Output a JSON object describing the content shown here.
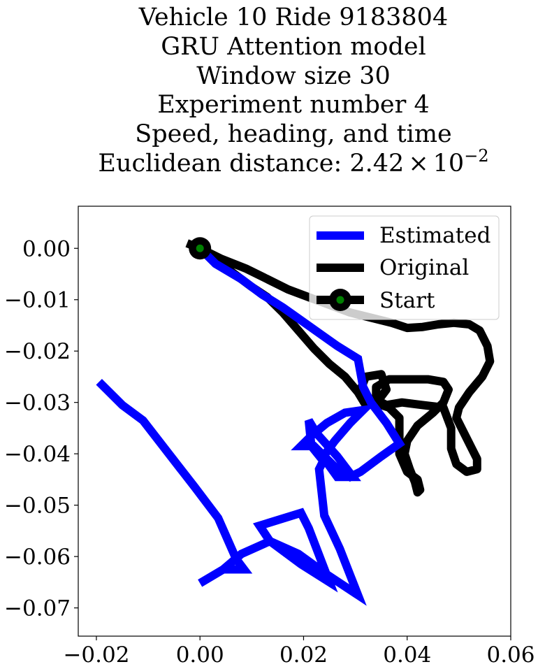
{
  "chart_data": {
    "type": "line",
    "title_lines": [
      "Vehicle 10 Ride 9183804",
      "GRU Attention model",
      "Window size 30",
      "Experiment number 4",
      "Speed, heading, and time"
    ],
    "title_distance_prefix": "Euclidean distance: ",
    "title_distance_mantissa": "2.42",
    "title_distance_times": "×",
    "title_distance_base": "10",
    "title_distance_exponent": "−2",
    "xlabel": "",
    "ylabel": "",
    "xlim": [
      -0.0235,
      0.06
    ],
    "ylim": [
      -0.0755,
      0.0082
    ],
    "x_ticks": [
      -0.02,
      0.0,
      0.02,
      0.04,
      0.06
    ],
    "x_tick_labels": [
      "−0.02",
      "0.00",
      "0.02",
      "0.04",
      "0.06"
    ],
    "y_ticks": [
      0.0,
      -0.01,
      -0.02,
      -0.03,
      -0.04,
      -0.05,
      -0.06,
      -0.07
    ],
    "y_tick_labels": [
      "0.00",
      "−0.01",
      "−0.02",
      "−0.03",
      "−0.04",
      "−0.05",
      "−0.06",
      "−0.07"
    ],
    "grid": false,
    "legend_position": "upper right",
    "series": [
      {
        "name": "Original",
        "color": "#000000",
        "points": [
          [
            -0.0025,
            0.001
          ],
          [
            0.0,
            0.0
          ],
          [
            0.004,
            -0.002
          ],
          [
            0.009,
            -0.004
          ],
          [
            0.013,
            -0.006
          ],
          [
            0.017,
            -0.008
          ],
          [
            0.021,
            -0.0095
          ],
          [
            0.025,
            -0.011
          ],
          [
            0.029,
            -0.0125
          ],
          [
            0.033,
            -0.0135
          ],
          [
            0.037,
            -0.0145
          ],
          [
            0.04,
            -0.0155
          ],
          [
            0.043,
            -0.0153
          ],
          [
            0.046,
            -0.0148
          ],
          [
            0.049,
            -0.0145
          ],
          [
            0.052,
            -0.0148
          ],
          [
            0.054,
            -0.016
          ],
          [
            0.0555,
            -0.019
          ],
          [
            0.056,
            -0.022
          ],
          [
            0.0545,
            -0.025
          ],
          [
            0.052,
            -0.028
          ],
          [
            0.05,
            -0.031
          ],
          [
            0.0495,
            -0.033
          ],
          [
            0.0505,
            -0.035
          ],
          [
            0.052,
            -0.038
          ],
          [
            0.0535,
            -0.041
          ],
          [
            0.0535,
            -0.043
          ],
          [
            0.0515,
            -0.0435
          ],
          [
            0.0495,
            -0.042
          ],
          [
            0.0485,
            -0.039
          ],
          [
            0.0485,
            -0.035
          ],
          [
            0.047,
            -0.031
          ],
          [
            0.043,
            -0.0305
          ],
          [
            0.039,
            -0.03
          ],
          [
            0.036,
            -0.0305
          ],
          [
            0.034,
            -0.0295
          ],
          [
            0.034,
            -0.027
          ],
          [
            0.0365,
            -0.0255
          ],
          [
            0.04,
            -0.0255
          ],
          [
            0.044,
            -0.0255
          ],
          [
            0.047,
            -0.026
          ],
          [
            0.048,
            -0.0275
          ],
          [
            0.047,
            -0.03
          ],
          [
            0.045,
            -0.032
          ],
          [
            0.042,
            -0.0345
          ],
          [
            0.04,
            -0.0375
          ],
          [
            0.0395,
            -0.04
          ],
          [
            0.0405,
            -0.043
          ],
          [
            0.0415,
            -0.0455
          ],
          [
            0.042,
            -0.0475
          ],
          [
            0.0425,
            -0.047
          ],
          [
            0.042,
            -0.045
          ],
          [
            0.04,
            -0.0435
          ],
          [
            0.0385,
            -0.04
          ],
          [
            0.0385,
            -0.036
          ],
          [
            0.0385,
            -0.033
          ],
          [
            0.0365,
            -0.031
          ],
          [
            0.0335,
            -0.03
          ],
          [
            0.031,
            -0.0275
          ],
          [
            0.032,
            -0.025
          ],
          [
            0.035,
            -0.0245
          ],
          [
            0.036,
            -0.0275
          ],
          [
            0.0345,
            -0.0295
          ],
          [
            0.032,
            -0.0305
          ],
          [
            0.0305,
            -0.028
          ],
          [
            0.028,
            -0.025
          ],
          [
            0.025,
            -0.0225
          ],
          [
            0.022,
            -0.0195
          ],
          [
            0.019,
            -0.016
          ],
          [
            0.016,
            -0.0125
          ],
          [
            0.013,
            -0.0095
          ],
          [
            0.01,
            -0.0075
          ],
          [
            0.006,
            -0.0045
          ],
          [
            0.003,
            -0.002
          ],
          [
            0.0,
            0.0
          ]
        ]
      },
      {
        "name": "Estimated",
        "color": "#0000ff",
        "points": [
          [
            0.0,
            0.0
          ],
          [
            0.003,
            -0.003
          ],
          [
            0.008,
            -0.006
          ],
          [
            0.012,
            -0.009
          ],
          [
            0.016,
            -0.0115
          ],
          [
            0.0195,
            -0.014
          ],
          [
            0.023,
            -0.0165
          ],
          [
            0.0265,
            -0.019
          ],
          [
            0.0305,
            -0.0215
          ],
          [
            0.0315,
            -0.027
          ],
          [
            0.033,
            -0.03
          ],
          [
            0.036,
            -0.034
          ],
          [
            0.0385,
            -0.038
          ],
          [
            0.035,
            -0.0405
          ],
          [
            0.031,
            -0.0435
          ],
          [
            0.029,
            -0.0445
          ],
          [
            0.026,
            -0.0425
          ],
          [
            0.022,
            -0.0385
          ],
          [
            0.0195,
            -0.0385
          ],
          [
            0.0215,
            -0.0365
          ],
          [
            0.0245,
            -0.034
          ],
          [
            0.028,
            -0.032
          ],
          [
            0.0315,
            -0.0315
          ],
          [
            0.029,
            -0.034
          ],
          [
            0.026,
            -0.0375
          ],
          [
            0.0235,
            -0.041
          ],
          [
            0.0215,
            -0.0385
          ],
          [
            0.021,
            -0.0335
          ],
          [
            0.0225,
            -0.036
          ],
          [
            0.0265,
            -0.0405
          ],
          [
            0.0295,
            -0.0445
          ],
          [
            0.0265,
            -0.0445
          ],
          [
            0.024,
            -0.041
          ],
          [
            0.023,
            -0.043
          ],
          [
            0.024,
            -0.052
          ],
          [
            0.027,
            -0.0585
          ],
          [
            0.0305,
            -0.0675
          ],
          [
            0.0245,
            -0.0635
          ],
          [
            0.019,
            -0.0595
          ],
          [
            0.0135,
            -0.057
          ],
          [
            0.0115,
            -0.054
          ],
          [
            0.0195,
            -0.0515
          ],
          [
            0.021,
            -0.0545
          ],
          [
            0.025,
            -0.065
          ],
          [
            0.0195,
            -0.0615
          ],
          [
            0.0135,
            -0.057
          ],
          [
            0.008,
            -0.0595
          ],
          [
            0.0045,
            -0.0625
          ],
          [
            0.0,
            -0.0652
          ],
          [
            0.0045,
            -0.0625
          ],
          [
            0.0085,
            -0.0625
          ],
          [
            0.007,
            -0.0605
          ],
          [
            0.0035,
            -0.0525
          ],
          [
            -0.001,
            -0.0465
          ],
          [
            -0.006,
            -0.04
          ],
          [
            -0.011,
            -0.0335
          ],
          [
            -0.015,
            -0.0305
          ],
          [
            -0.0195,
            -0.026
          ]
        ]
      }
    ],
    "start_point": {
      "name": "Start",
      "x": 0.0,
      "y": 0.0,
      "outer_color": "#000000",
      "inner_color": "#008000"
    }
  }
}
